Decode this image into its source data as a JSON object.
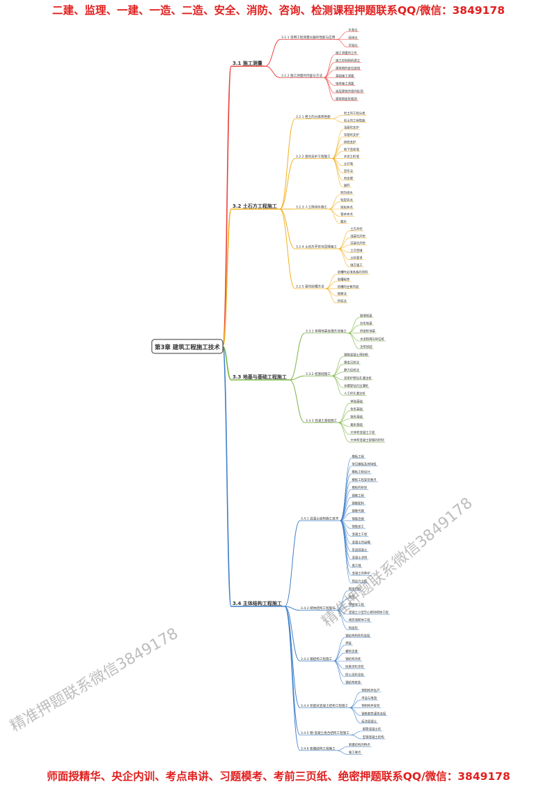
{
  "header": "二建、监理、一建、一造、二造、安全、消防、咨询、检测课程押题联系QQ/微信：3849178",
  "footer": "师面授精华、央企内训、考点串讲、习题模考、考前三页纸、绝密押题联系QQ/微信：3849178",
  "watermarks": [
    "精准押题联系微信3849178",
    "精准押题联系微信3849178"
  ],
  "root": "第3章 建筑工程施工技术",
  "branches": [
    {
      "label": "3.1 施工测量",
      "children": [
        {
          "label": "3.1.1 常用工程测量仪器的性能与应用",
          "children": [
            "水准仪",
            "经纬仪",
            "全站仪"
          ]
        },
        {
          "label": "3.1.2 施工测量的内容与方法",
          "children": [
            "施工测量的工作",
            "施工控制网的建立",
            "建筑物的定位放线",
            "基础施工测量",
            "墙体施工测量",
            "高层建筑的竖向投测",
            "建筑物变形观测"
          ]
        }
      ]
    },
    {
      "label": "3.2 土石方工程施工",
      "children": [
        {
          "label": "3.2.1 岩土的分类和性能",
          "children": [
            "岩土的工程分类",
            "岩土的工程性能"
          ]
        },
        {
          "label": "3.2.2 基坑支护工程施工",
          "children": [
            "浅基坑支护",
            "深基坑支护",
            "排桩支护",
            "地下连续墙",
            "水泥土桩墙",
            "土钉墙",
            "逆作法",
            "内支撑",
            "锚杆"
          ]
        },
        {
          "label": "3.2.3 人工降排水施工",
          "children": [
            "明沟排水",
            "轻型井点",
            "喷射井点",
            "管井井点",
            "截水"
          ]
        },
        {
          "label": "3.2.4 土石方开挖与回填施工",
          "children": [
            "土方开挖",
            "浅基坑开挖",
            "深基坑开挖",
            "土方回填",
            "土料要求",
            "填方施工"
          ]
        },
        {
          "label": "3.2.5 基坑验槽方法",
          "children": [
            "验槽时必须具备的资料",
            "验槽程序",
            "验槽的主要内容",
            "观察法",
            "钎探法"
          ]
        }
      ]
    },
    {
      "label": "3.3 地基与基础工程施工",
      "children": [
        {
          "label": "3.3.1 常用地基处理方法施工",
          "children": [
            "换填地基",
            "夯实地基",
            "挤密桩地基",
            "水泥粉煤灰碎石桩",
            "注浆加固"
          ]
        },
        {
          "label": "3.3.2 桩基础施工",
          "children": [
            "钢筋混凝土预制桩",
            "锤击沉桩法",
            "静力压桩法",
            "泥浆护壁钻孔灌注桩",
            "长螺旋钻孔压灌桩",
            "人工挖孔灌注桩"
          ]
        },
        {
          "label": "3.3.3 混凝土基础施工",
          "children": [
            "单独基础",
            "条形基础",
            "筏形基础",
            "箱形基础",
            "大体积混凝土工程",
            "大体积混凝土裂缝的控制"
          ]
        }
      ]
    },
    {
      "label": "3.4 主体结构工程施工",
      "children": [
        {
          "label": "3.4.1 混凝土结构施工技术",
          "children": [
            "模板工程",
            "常见模板及其特性",
            "模板工程设计",
            "模板工程安装要点",
            "模板的拆除",
            "钢筋工程",
            "钢筋配料",
            "钢筋代换",
            "钢筋连接",
            "钢筋加工",
            "混凝土工程",
            "混凝土的运输",
            "泵送混凝土",
            "混凝土浇筑",
            "施工缝",
            "混凝土的养护",
            "预应力工程"
          ]
        },
        {
          "label": "3.4.2 砌体结构工程施工",
          "children": [
            "砌体材料",
            "砂浆",
            "砖砌体工程",
            "混凝土小型空心砌块砌体工程",
            "填充墙砌体工程",
            "构造柱"
          ]
        },
        {
          "label": "3.4.3 钢结构工程施工",
          "children": [
            "钢结构构件的连接",
            "焊接",
            "螺栓连接",
            "钢结构涂装",
            "防腐涂料涂装",
            "防火涂料涂装",
            "钢结构安装"
          ]
        },
        {
          "label": "3.4.4 装配式混凝土结构工程施工",
          "children": [
            "预制构件生产",
            "吊运与堆放",
            "预制构件安装",
            "钢筋套筒灌浆连接",
            "后浇混凝土"
          ]
        },
        {
          "label": "3.4.5 钢-混凝土组合结构工程施工",
          "children": [
            "钢管混凝土柱",
            "型钢混凝土结构"
          ]
        },
        {
          "label": "3.4.6 索膜结构工程施工",
          "children": [
            "索膜结构的特点",
            "施工要点"
          ]
        }
      ]
    }
  ]
}
